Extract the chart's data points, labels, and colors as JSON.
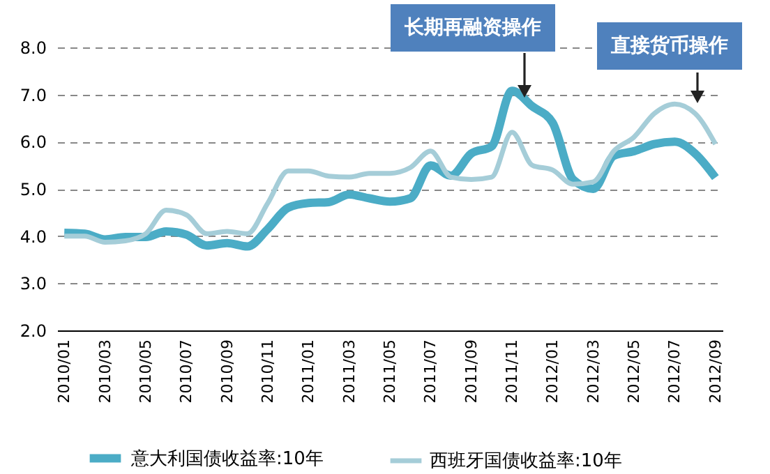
{
  "chart_data": {
    "type": "line",
    "categories": [
      "2010/01",
      null,
      "2010/03",
      null,
      "2010/05",
      null,
      "2010/07",
      null,
      "2010/09",
      null,
      "2010/11",
      null,
      "2011/01",
      null,
      "2011/03",
      null,
      "2011/05",
      null,
      "2011/07",
      null,
      "2011/09",
      null,
      "2011/11",
      null,
      "2012/01",
      null,
      "2012/03",
      null,
      "2012/05",
      null,
      "2012/07",
      null,
      "2012/09"
    ],
    "series": [
      {
        "name": "意大利国债收益率:10年",
        "color": "#4bacc6",
        "values": [
          4.07,
          4.05,
          3.93,
          3.98,
          3.98,
          4.1,
          4.03,
          3.8,
          3.85,
          3.78,
          4.15,
          4.6,
          4.7,
          4.72,
          4.88,
          4.8,
          4.73,
          4.8,
          5.5,
          5.28,
          5.75,
          5.9,
          7.08,
          6.75,
          6.4,
          5.2,
          5.0,
          5.7,
          5.8,
          5.95,
          6.0,
          5.75,
          5.24
        ]
      },
      {
        "name": "西班牙国债收益率:10年",
        "color": "#a5cdd8",
        "values": [
          4.0,
          4.0,
          3.87,
          3.9,
          4.05,
          4.55,
          4.45,
          4.05,
          4.1,
          4.05,
          4.7,
          5.38,
          5.38,
          5.27,
          5.25,
          5.33,
          5.33,
          5.45,
          5.8,
          5.25,
          5.2,
          5.25,
          6.2,
          5.5,
          5.4,
          5.1,
          5.15,
          5.8,
          6.1,
          6.6,
          6.8,
          6.6,
          5.95
        ]
      }
    ],
    "ylim": [
      2,
      8
    ],
    "yticks": [
      {
        "value": 2,
        "label": "2.0"
      },
      {
        "value": 3,
        "label": "3.0"
      },
      {
        "value": 4,
        "label": "4.0"
      },
      {
        "value": 5,
        "label": "5.0"
      },
      {
        "value": 6,
        "label": "6.0"
      },
      {
        "value": 7,
        "label": "7.0"
      },
      {
        "value": 8,
        "label": "8.0"
      }
    ],
    "grid": "y",
    "legend": "bottom",
    "line_style": "solid",
    "marker": "none",
    "annotations": [
      "长期再融资操作",
      "直接货币操作"
    ]
  }
}
